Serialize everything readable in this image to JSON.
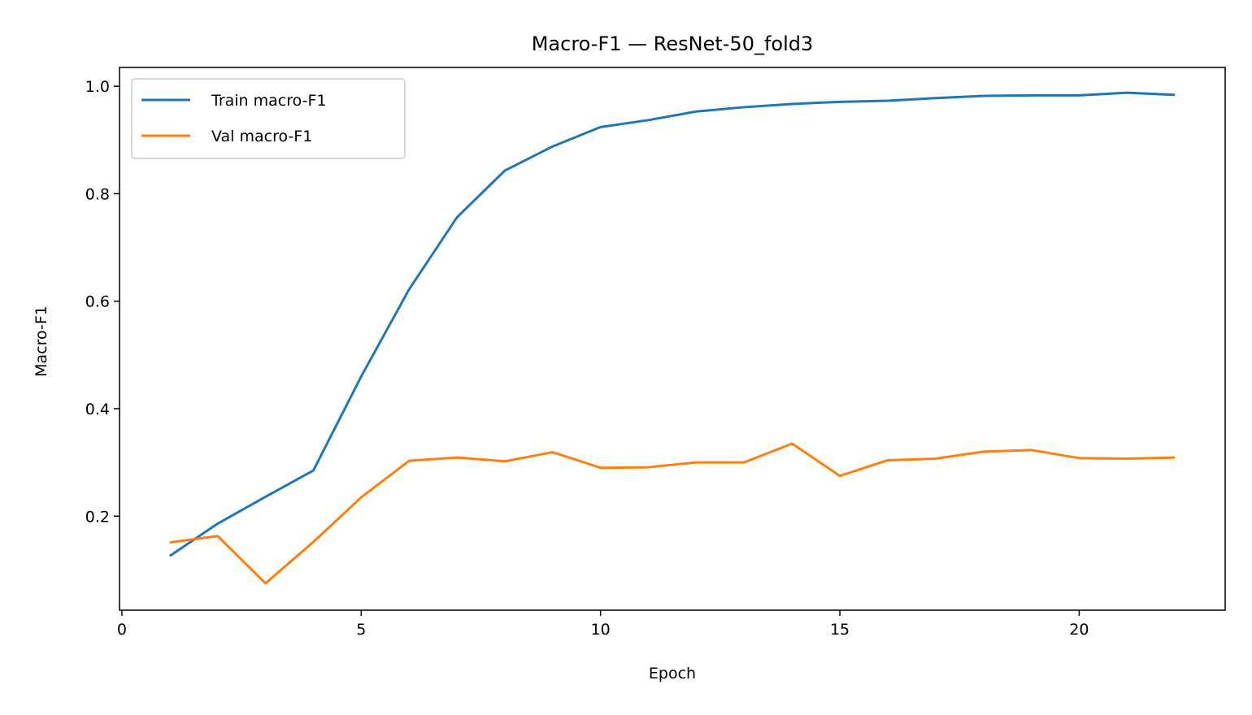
{
  "chart_data": {
    "type": "line",
    "title": "Macro-F1 — ResNet-50_fold3",
    "xlabel": "Epoch",
    "ylabel": "Macro-F1",
    "xlim": [
      -0.05,
      23.05
    ],
    "ylim": [
      0.025,
      1.035
    ],
    "xticks": [
      0,
      5,
      10,
      15,
      20
    ],
    "yticks": [
      0.2,
      0.4,
      0.6,
      0.8,
      1.0
    ],
    "grid": false,
    "legend_position": "upper left",
    "x": [
      1,
      2,
      3,
      4,
      5,
      6,
      7,
      8,
      9,
      10,
      11,
      12,
      13,
      14,
      15,
      16,
      17,
      18,
      19,
      20,
      21,
      22
    ],
    "series": [
      {
        "name": "Train macro-F1",
        "color": "#1f77b4",
        "values": [
          0.126,
          0.186,
          0.236,
          0.285,
          0.46,
          0.622,
          0.756,
          0.843,
          0.888,
          0.924,
          0.937,
          0.953,
          0.961,
          0.967,
          0.971,
          0.973,
          0.978,
          0.982,
          0.983,
          0.983,
          0.988,
          0.984
        ]
      },
      {
        "name": "Val macro-F1",
        "color": "#ff7f0e",
        "values": [
          0.151,
          0.163,
          0.075,
          0.152,
          0.235,
          0.303,
          0.309,
          0.302,
          0.319,
          0.29,
          0.291,
          0.3,
          0.3,
          0.335,
          0.275,
          0.304,
          0.307,
          0.32,
          0.323,
          0.308,
          0.307,
          0.309
        ]
      }
    ]
  }
}
